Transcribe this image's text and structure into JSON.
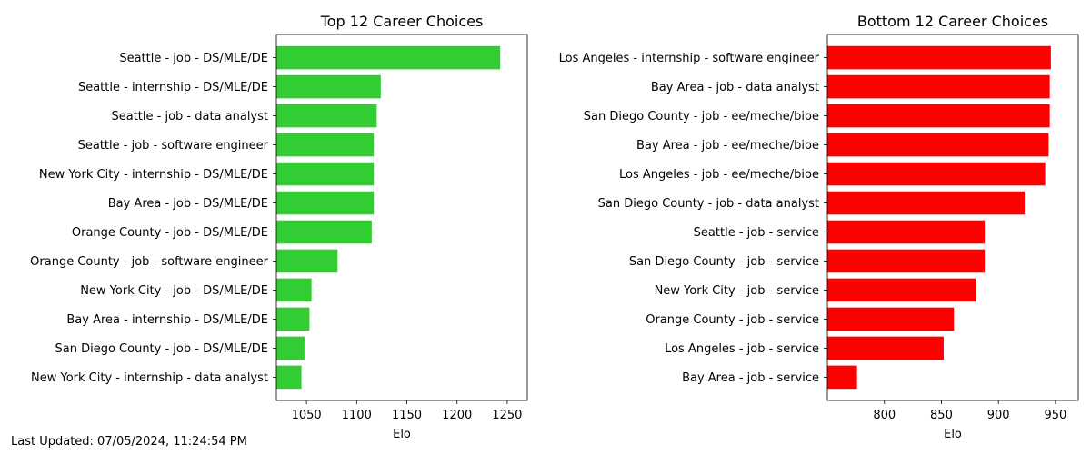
{
  "footer": {
    "last_updated": "Last Updated: 07/05/2024, 11:24:54 PM"
  },
  "chart_data": [
    {
      "type": "bar",
      "orientation": "horizontal",
      "title": "Top 12 Career Choices",
      "xlabel": "Elo",
      "ylabel": "",
      "xlim": [
        1020,
        1270
      ],
      "xticks": [
        1050,
        1100,
        1150,
        1200,
        1250
      ],
      "color": "#32cd32",
      "grid": false,
      "categories": [
        "Seattle - job - DS/MLE/DE",
        "Seattle - internship - DS/MLE/DE",
        "Seattle - job - data analyst",
        "Seattle - job - software engineer",
        "New York City - internship - DS/MLE/DE",
        "Bay Area - job - DS/MLE/DE",
        "Orange County - job - DS/MLE/DE",
        "Orange County - job - software engineer",
        "New York City - job - DS/MLE/DE",
        "Bay Area - internship - DS/MLE/DE",
        "San Diego County - job - DS/MLE/DE",
        "New York City - internship - data analyst"
      ],
      "values": [
        1243,
        1124,
        1120,
        1117,
        1117,
        1117,
        1115,
        1081,
        1055,
        1053,
        1048,
        1045
      ]
    },
    {
      "type": "bar",
      "orientation": "horizontal",
      "title": "Bottom 12 Career Choices",
      "xlabel": "Elo",
      "ylabel": "",
      "xlim": [
        750,
        970
      ],
      "xticks": [
        800,
        850,
        900,
        950
      ],
      "color": "#ff0000",
      "grid": false,
      "categories": [
        "Los Angeles - internship - software engineer",
        "Bay Area - job - data analyst",
        "San Diego County - job - ee/meche/bioe",
        "Bay Area - job - ee/meche/bioe",
        "Los Angeles - job - ee/meche/bioe",
        "San Diego County - job - data analyst",
        "Seattle - job - service",
        "San Diego County - job - service",
        "New York City - job - service",
        "Orange County - job - service",
        "Los Angeles - job - service",
        "Bay Area - job - service"
      ],
      "values": [
        946,
        945,
        945,
        944,
        941,
        923,
        888,
        888,
        880,
        861,
        852,
        776
      ]
    }
  ]
}
